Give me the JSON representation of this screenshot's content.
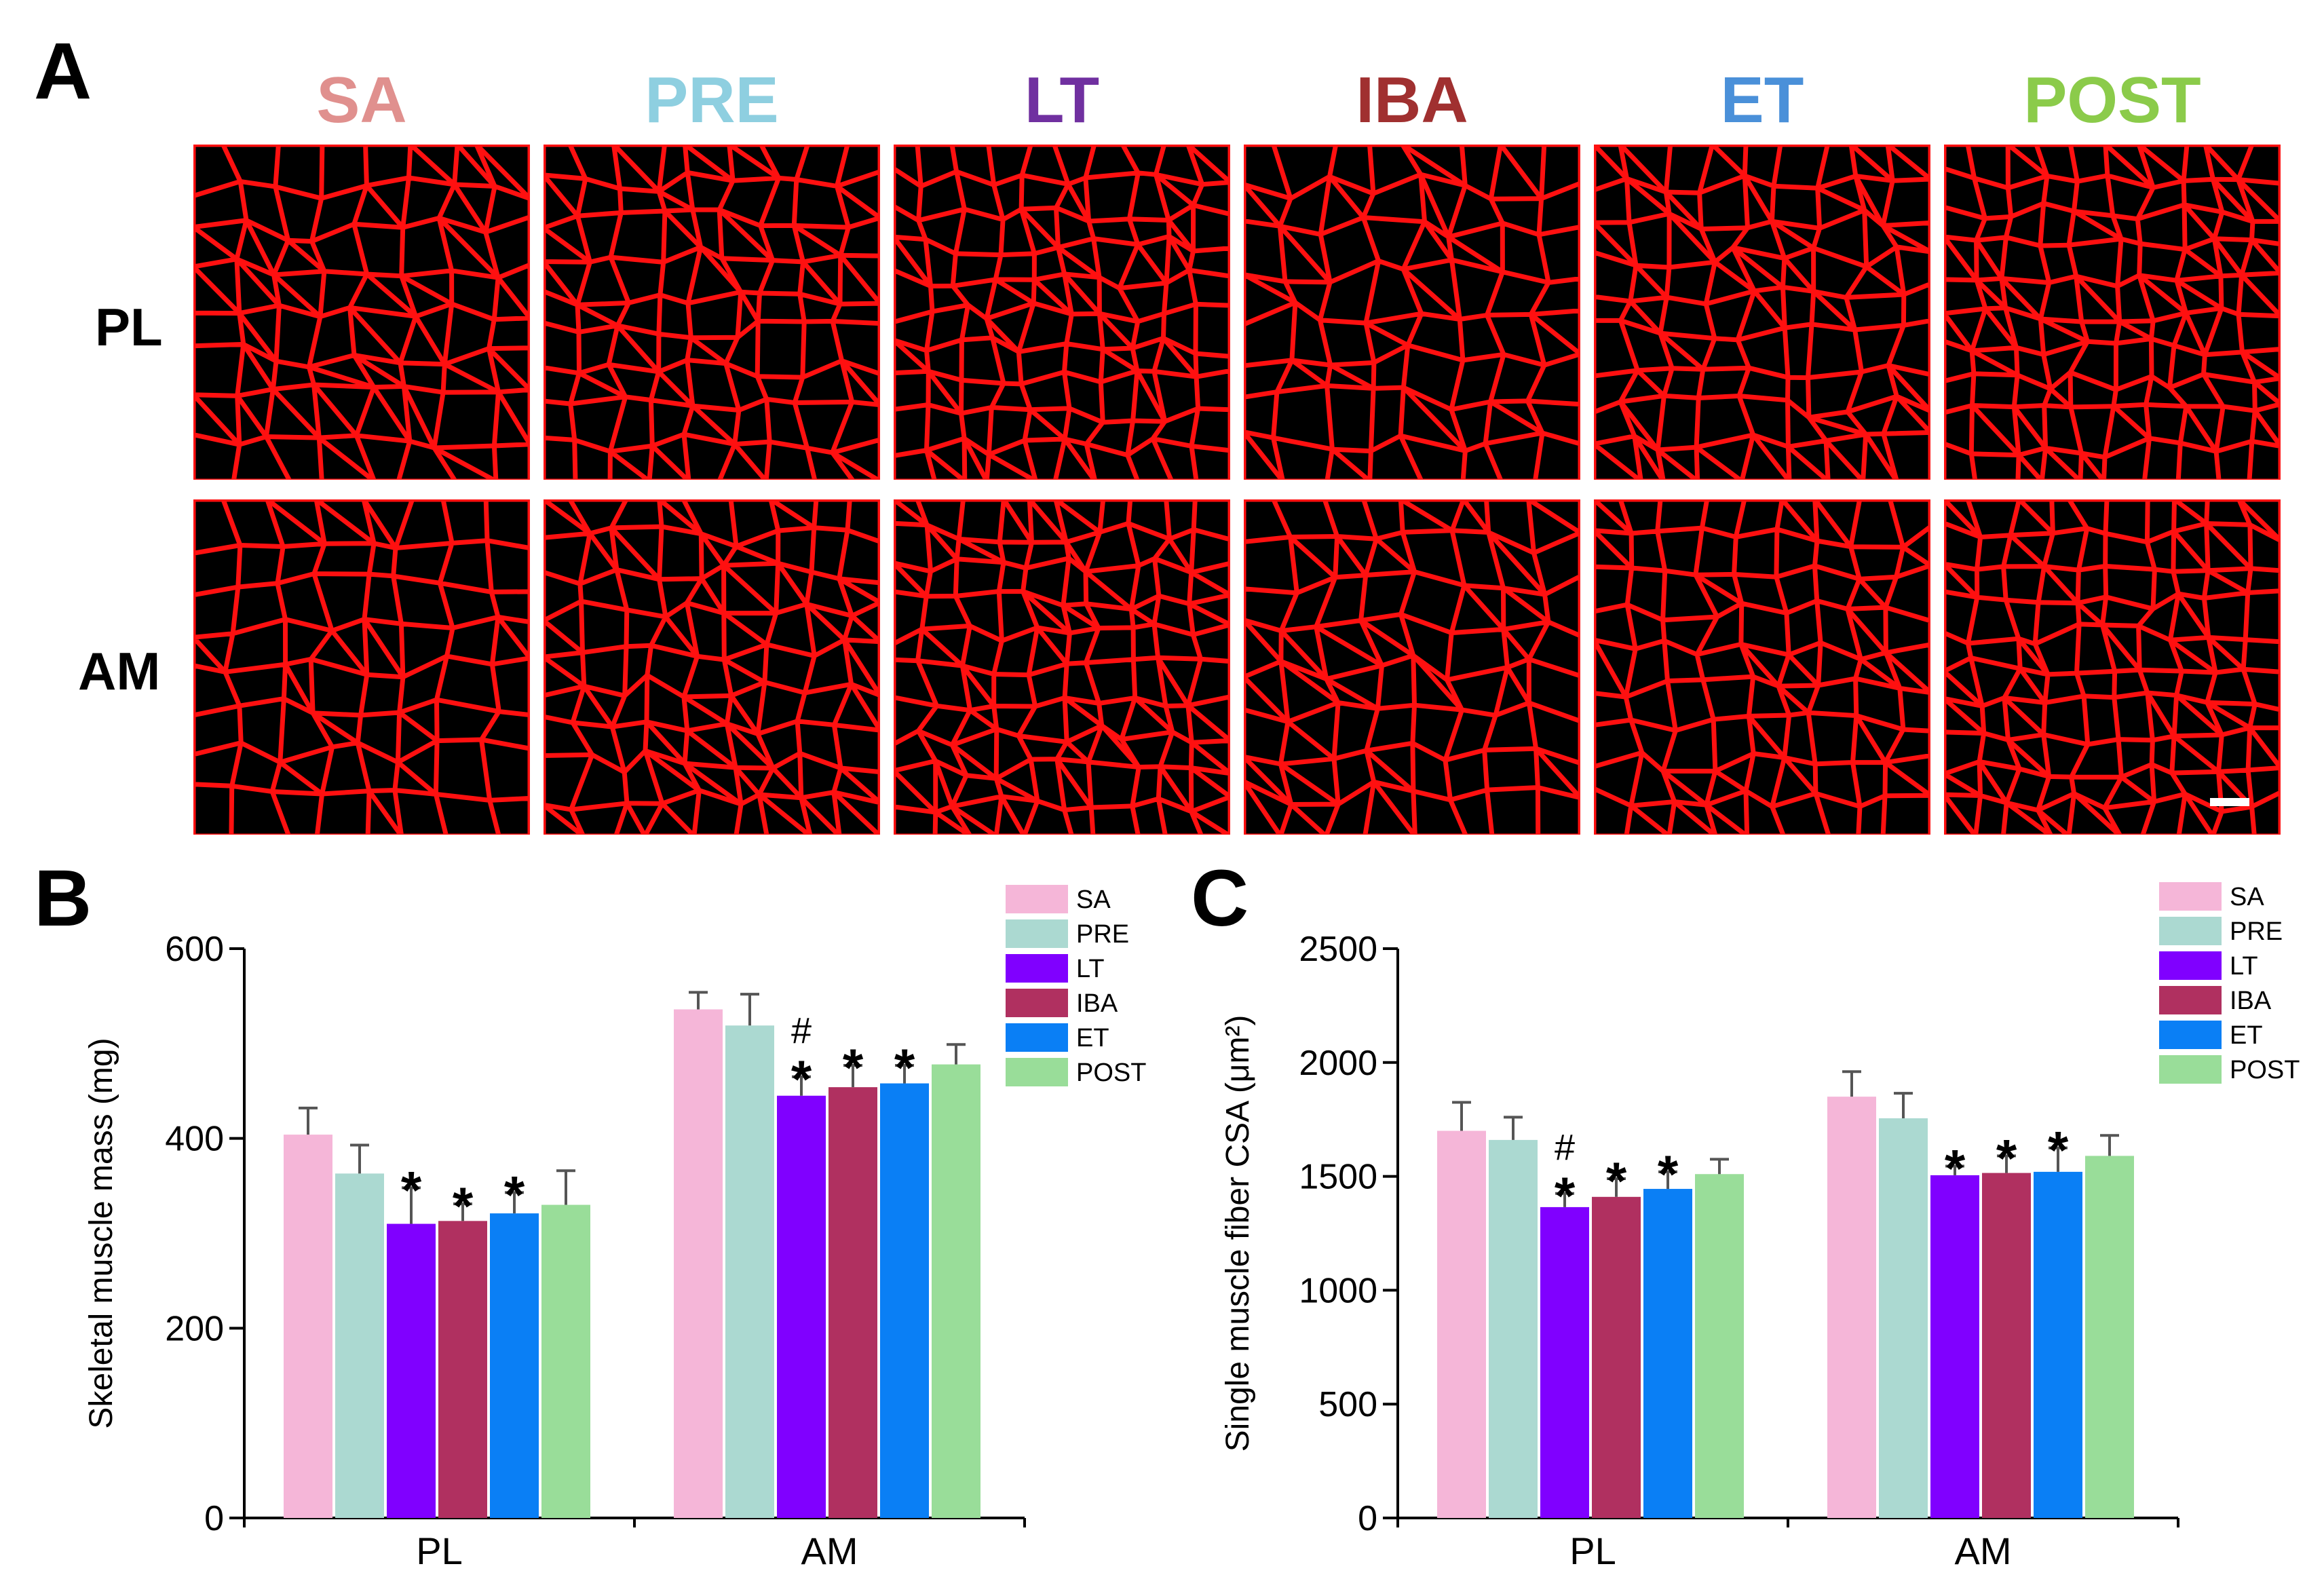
{
  "panel_a": {
    "letter": "A",
    "groups": [
      {
        "label": "SA",
        "color": "#E0908E"
      },
      {
        "label": "PRE",
        "color": "#8ECFE0"
      },
      {
        "label": "LT",
        "color": "#7030A0"
      },
      {
        "label": "IBA",
        "color": "#A03030"
      },
      {
        "label": "ET",
        "color": "#4A90D9"
      },
      {
        "label": "POST",
        "color": "#8BCB4A"
      }
    ],
    "rows": [
      "PL",
      "AM"
    ],
    "stain_color": "#FF1010"
  },
  "chart_data": [
    {
      "panel": "B",
      "type": "bar",
      "title": "",
      "xlabel": "",
      "ylabel": "Skeletal muscle mass (mg)",
      "ylim": [
        0,
        600
      ],
      "yticks": [
        "0",
        "200",
        "400",
        "600"
      ],
      "categories": [
        "PL",
        "AM"
      ],
      "series": [
        {
          "name": "SA",
          "color": "#F5B6D8",
          "values": [
            404,
            536
          ],
          "errors": [
            28,
            18
          ]
        },
        {
          "name": "PRE",
          "color": "#ABD9D1",
          "values": [
            363,
            519
          ],
          "errors": [
            30,
            33
          ]
        },
        {
          "name": "LT",
          "color": "#8000FF",
          "values": [
            310,
            445
          ],
          "errors": [
            38,
            20
          ]
        },
        {
          "name": "IBA",
          "color": "#B03060",
          "values": [
            313,
            454
          ],
          "errors": [
            18,
            23
          ]
        },
        {
          "name": "ET",
          "color": "#0A7FF5",
          "values": [
            321,
            458
          ],
          "errors": [
            22,
            19
          ]
        },
        {
          "name": "POST",
          "color": "#99DD99",
          "values": [
            330,
            478
          ],
          "errors": [
            36,
            21
          ]
        }
      ],
      "annotations": [
        {
          "category": "PL",
          "series": "LT",
          "text": "*"
        },
        {
          "category": "PL",
          "series": "IBA",
          "text": "*"
        },
        {
          "category": "PL",
          "series": "ET",
          "text": "*"
        },
        {
          "category": "AM",
          "series": "LT",
          "text": "*"
        },
        {
          "category": "AM",
          "series": "LT",
          "text": "#"
        },
        {
          "category": "AM",
          "series": "IBA",
          "text": "*"
        },
        {
          "category": "AM",
          "series": "ET",
          "text": "*"
        }
      ],
      "legend_position": "top-right"
    },
    {
      "panel": "C",
      "type": "bar",
      "title": "",
      "xlabel": "",
      "ylabel": "Single muscle fiber CSA (μm²)",
      "ylim": [
        0,
        2500
      ],
      "yticks": [
        "0",
        "500",
        "1000",
        "1500",
        "2000",
        "2500"
      ],
      "categories": [
        "PL",
        "AM"
      ],
      "series": [
        {
          "name": "SA",
          "color": "#F5B6D8",
          "values": [
            1700,
            1850
          ],
          "errors": [
            125,
            110
          ]
        },
        {
          "name": "PRE",
          "color": "#ABD9D1",
          "values": [
            1660,
            1755
          ],
          "errors": [
            100,
            110
          ]
        },
        {
          "name": "LT",
          "color": "#8000FF",
          "values": [
            1365,
            1505
          ],
          "errors": [
            60,
            40
          ]
        },
        {
          "name": "IBA",
          "color": "#B03060",
          "values": [
            1410,
            1515
          ],
          "errors": [
            80,
            75
          ]
        },
        {
          "name": "ET",
          "color": "#0A7FF5",
          "values": [
            1445,
            1520
          ],
          "errors": [
            75,
            105
          ]
        },
        {
          "name": "POST",
          "color": "#99DD99",
          "values": [
            1510,
            1590
          ],
          "errors": [
            65,
            90
          ]
        }
      ],
      "annotations": [
        {
          "category": "PL",
          "series": "LT",
          "text": "*"
        },
        {
          "category": "PL",
          "series": "LT",
          "text": "#"
        },
        {
          "category": "PL",
          "series": "IBA",
          "text": "*"
        },
        {
          "category": "PL",
          "series": "ET",
          "text": "*"
        },
        {
          "category": "AM",
          "series": "LT",
          "text": "*"
        },
        {
          "category": "AM",
          "series": "IBA",
          "text": "*"
        },
        {
          "category": "AM",
          "series": "ET",
          "text": "*"
        }
      ],
      "legend_position": "top-right"
    }
  ]
}
